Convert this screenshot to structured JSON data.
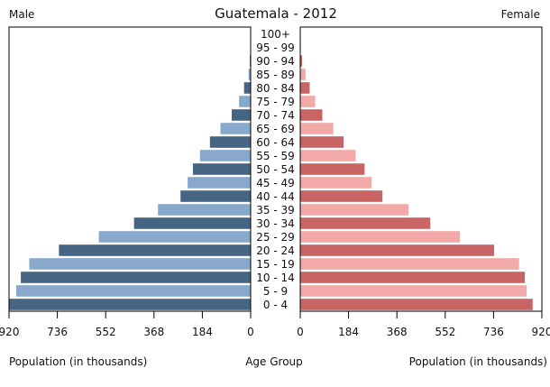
{
  "chart_data": {
    "type": "bar",
    "title": "Guatemala - 2012",
    "left_header": "Male",
    "right_header": "Female",
    "xlabel_left": "Population (in thousands)",
    "xlabel_center": "Age Group",
    "xlabel_right": "Population (in thousands)",
    "xlim": [
      0,
      920
    ],
    "tick_values": [
      0,
      184,
      368,
      552,
      736,
      920
    ],
    "tick_labels": [
      "0",
      "184",
      "368",
      "552",
      "736",
      "920"
    ],
    "grid": false,
    "colors": {
      "male_dark": "#466483",
      "male_light": "#88a9cb",
      "female_dark": "#c86464",
      "female_light": "#f2aaa8"
    },
    "categories": [
      "100+",
      "95 - 99",
      "90 - 94",
      "85 - 89",
      "80 - 84",
      "75 - 79",
      "70 - 74",
      "65 - 69",
      "60 - 64",
      "55 - 59",
      "50 - 54",
      "45 - 49",
      "40 - 44",
      "35 - 39",
      "30 - 34",
      "25 - 29",
      "20 - 24",
      "15 - 19",
      "10 - 14",
      "5 - 9",
      "0 - 4"
    ],
    "series": [
      {
        "name": "Male",
        "values": [
          0.3,
          1,
          3,
          8,
          25,
          44,
          72,
          115,
          155,
          193,
          220,
          240,
          267,
          353,
          444,
          578,
          730,
          843,
          875,
          893,
          920
        ]
      },
      {
        "name": "Female",
        "values": [
          0.4,
          2,
          7,
          20,
          36,
          57,
          84,
          126,
          165,
          211,
          245,
          272,
          313,
          412,
          495,
          608,
          738,
          833,
          855,
          862,
          885
        ]
      }
    ]
  }
}
